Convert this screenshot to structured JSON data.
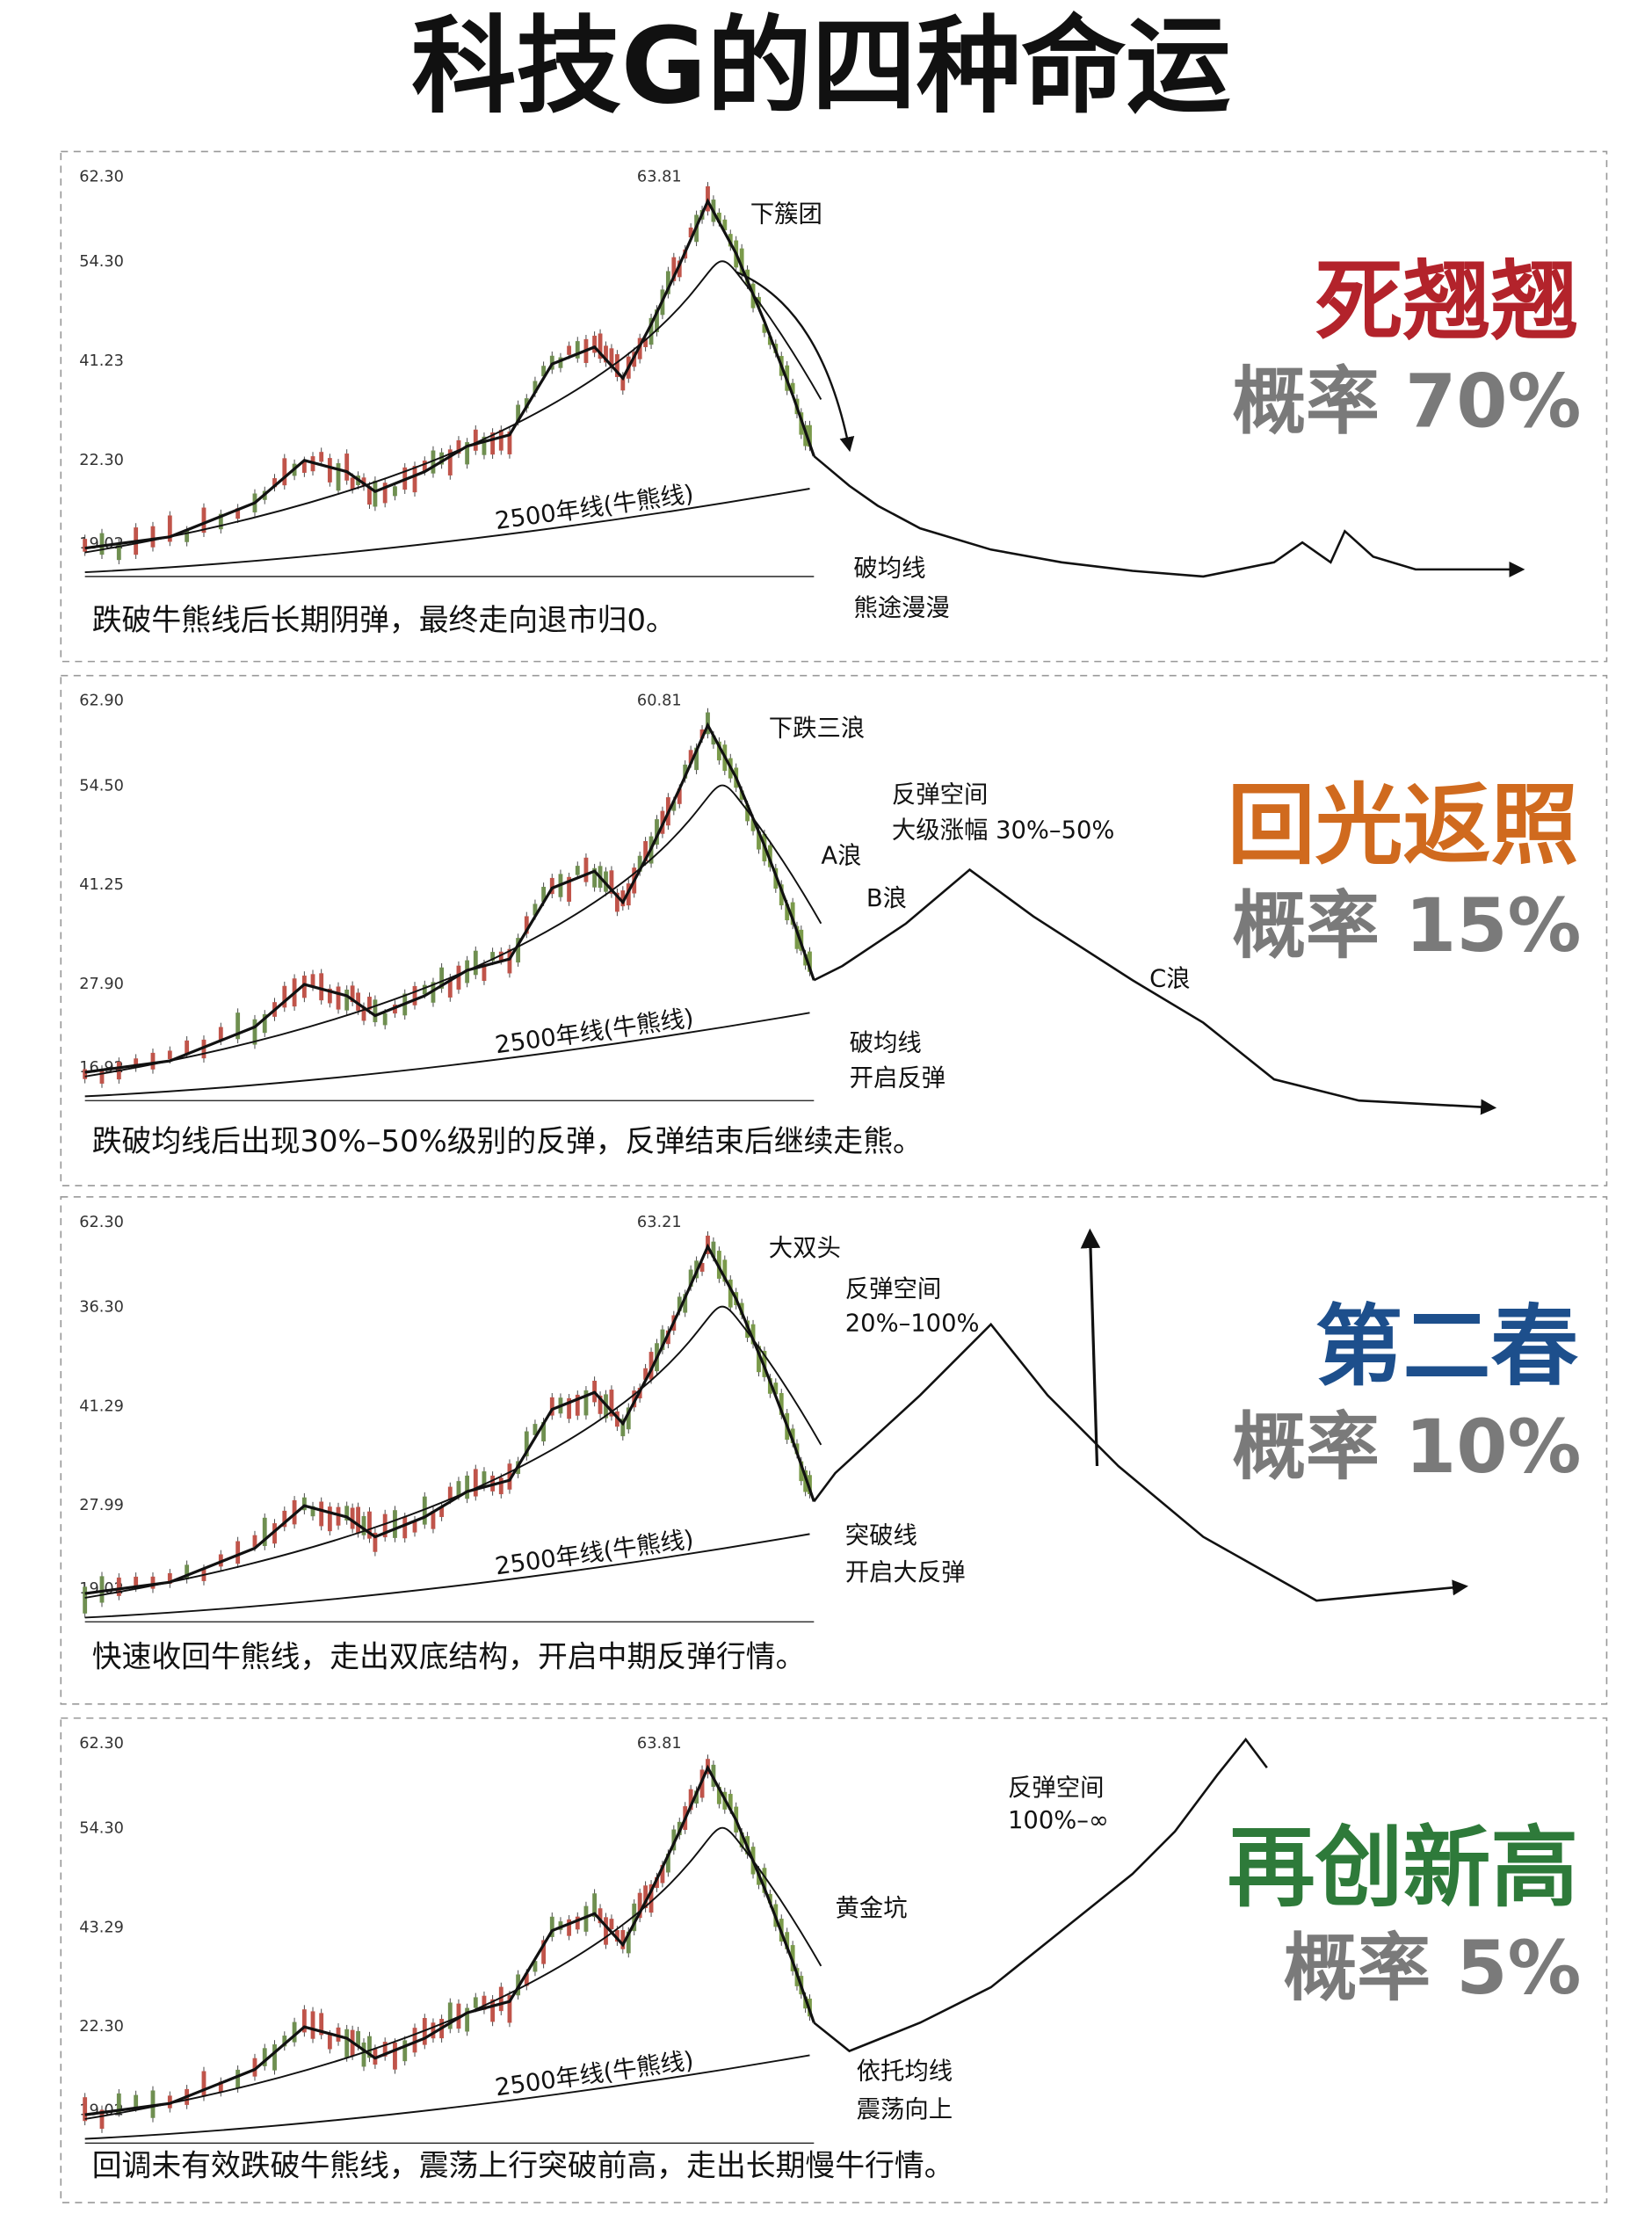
{
  "title": "科技G的四种命运",
  "panels": [
    {
      "name": "死翘翘",
      "probability": "概率 70%",
      "description": "跌破牛熊线后长期阴弹，最终走向退市归0。",
      "peak_label": "63.81",
      "y_labels": [
        "62.30",
        "54.30",
        "41.23",
        "22.30",
        "19.02"
      ],
      "line_label": "2500年线(牛熊线)",
      "annotations": [
        "下簇团",
        "破均线",
        "熊途漫漫"
      ]
    },
    {
      "name": "回光返照",
      "probability": "概率 15%",
      "description": "跌破均线后出现30%–50%级别的反弹，反弹结束后继续走熊。",
      "peak_label": "60.81",
      "y_labels": [
        "62.90",
        "54.50",
        "41.25",
        "27.90",
        "16.92"
      ],
      "line_label": "2500年线(牛熊线)",
      "annotations": [
        "下跌三浪",
        "反弹空间",
        "大级涨幅 30%–50%",
        "A浪",
        "B浪",
        "C浪",
        "破均线",
        "开启反弹"
      ]
    },
    {
      "name": "第二春",
      "probability": "概率 10%",
      "description": "快速收回牛熊线，走出双底结构，开启中期反弹行情。",
      "peak_label": "63.21",
      "y_labels": [
        "62.30",
        "36.30",
        "41.29",
        "27.99",
        "19.02"
      ],
      "line_label": "2500年线(牛熊线)",
      "annotations": [
        "大双头",
        "反弹空间",
        "20%–100%",
        "突破线",
        "开启大反弹"
      ]
    },
    {
      "name": "再创新高",
      "probability": "概率 5%",
      "description": "回调未有效跌破牛熊线，震荡上行突破前高，走出长期慢牛行情。",
      "peak_label": "63.81",
      "y_labels": [
        "62.30",
        "54.30",
        "43.29",
        "22.30",
        "19.02"
      ],
      "line_label": "2500年线(牛熊线)",
      "annotations": [
        "黄金坑",
        "反弹空间",
        "100%–∞",
        "依托均线",
        "震荡向上"
      ]
    }
  ]
}
